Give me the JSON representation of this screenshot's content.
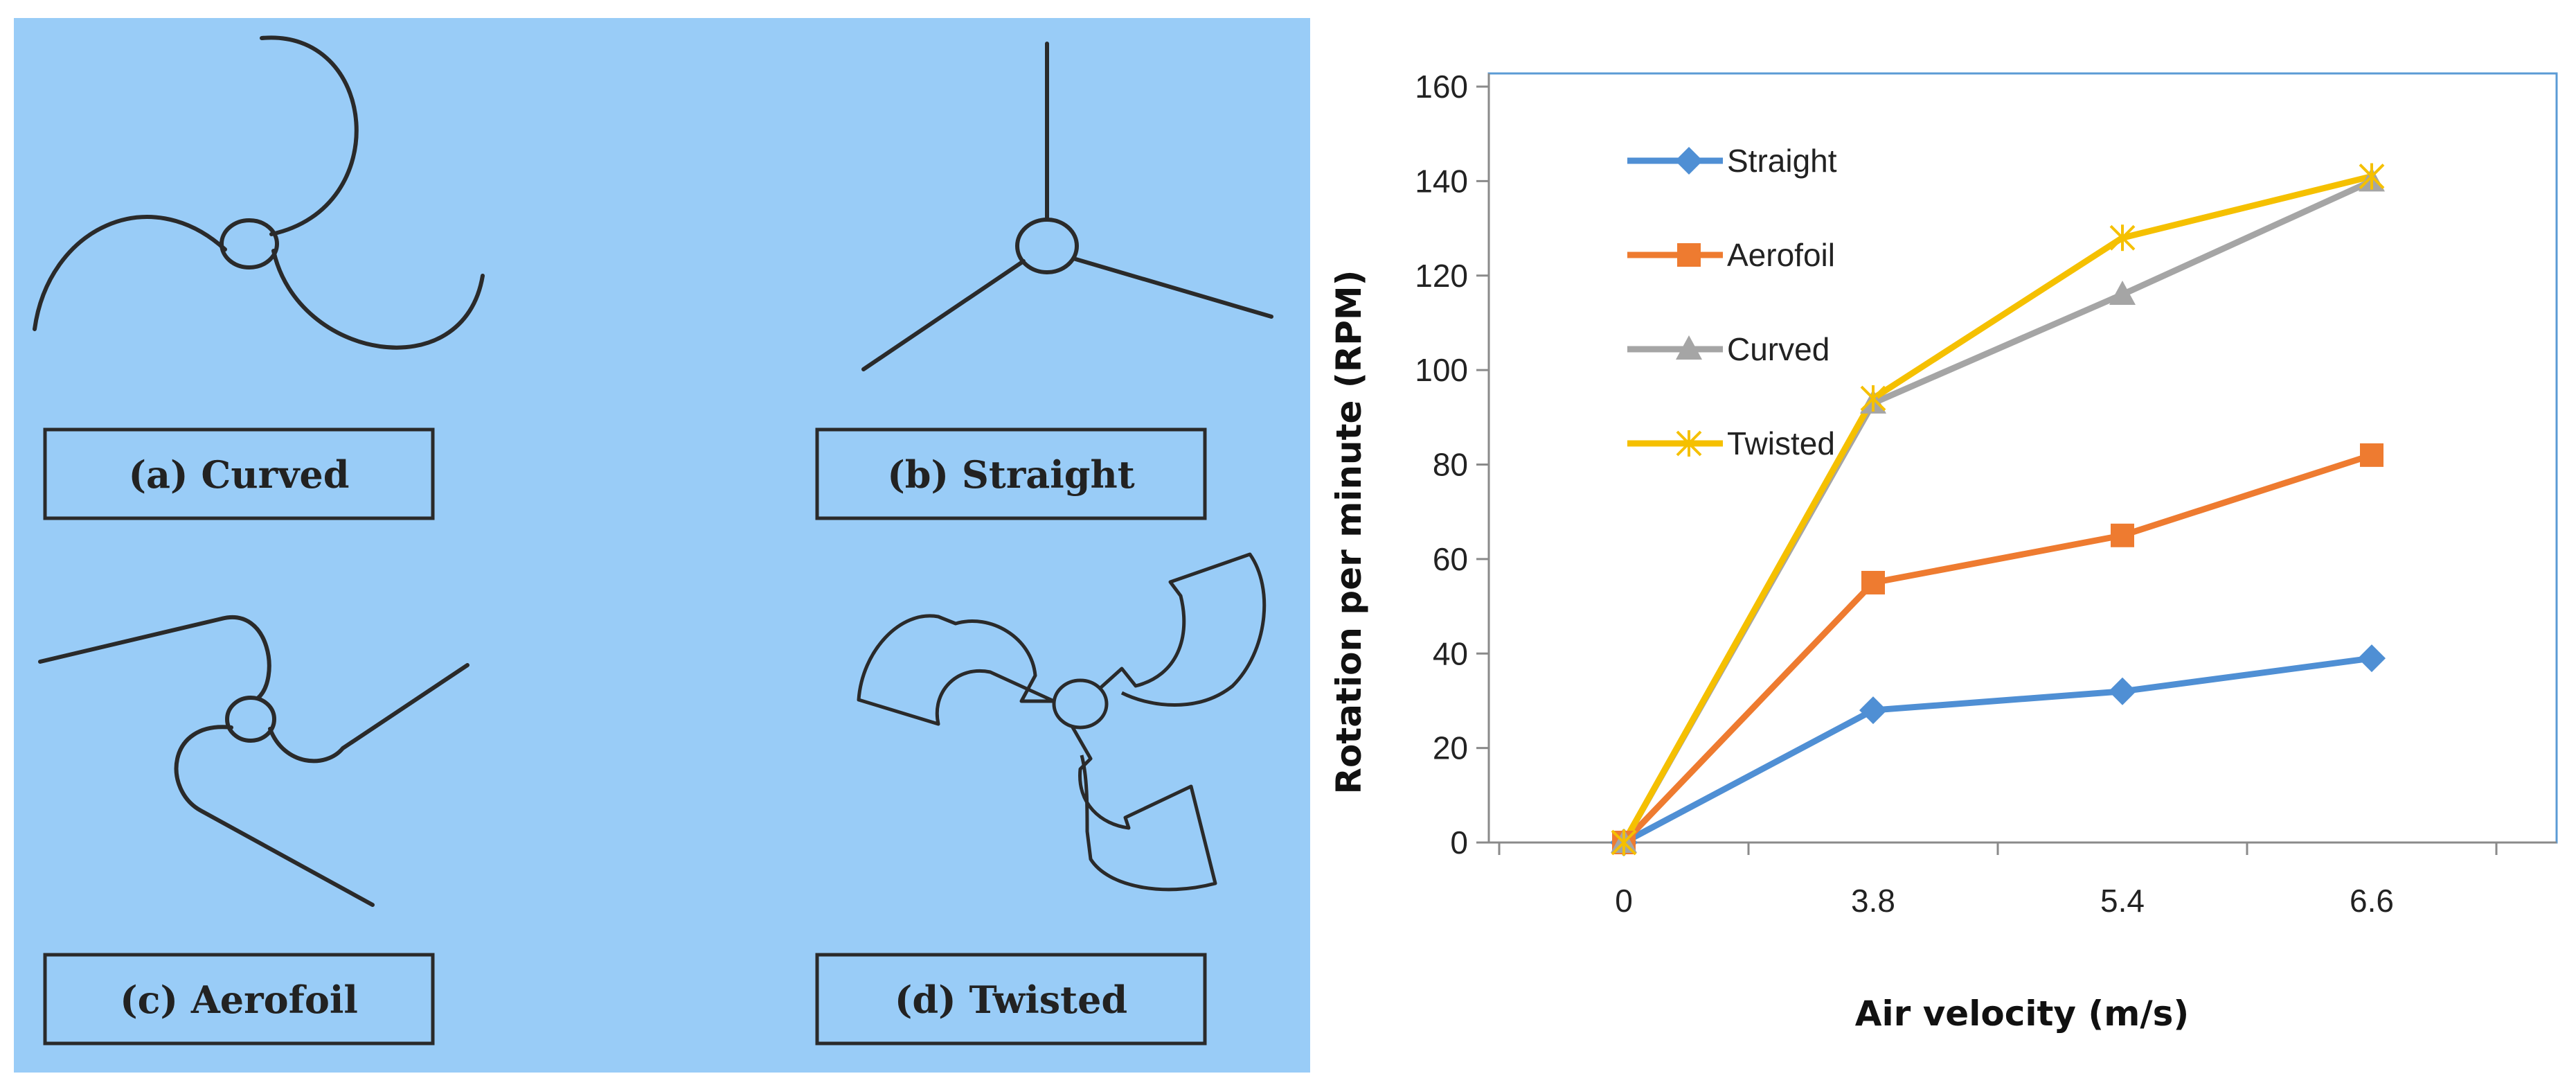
{
  "panel": {
    "background": "#99ccf7",
    "labels": [
      "(a) Curved",
      "(b) Straight",
      "(c) Aerofoil",
      "(d) Twisted"
    ]
  },
  "chart_data": {
    "type": "line",
    "categories": [
      "0",
      "3.8",
      "5.4",
      "6.6"
    ],
    "xlabel": "Air velocity (m/s)",
    "ylabel": "Rotation per minute (RPM)",
    "ylim": [
      0,
      160
    ],
    "yticks": [
      "0",
      "20",
      "40",
      "60",
      "80",
      "100",
      "120",
      "140",
      "160"
    ],
    "grid": false,
    "legend_position": "top-left inside",
    "series": [
      {
        "name": "Straight",
        "values": [
          0,
          28,
          32,
          39
        ],
        "color": "#4f8fd4",
        "marker": "diamond"
      },
      {
        "name": "Aerofoil",
        "values": [
          0,
          55,
          65,
          82
        ],
        "color": "#ee7b30",
        "marker": "square"
      },
      {
        "name": "Curved",
        "values": [
          0,
          93,
          116,
          140
        ],
        "color": "#a5a5a5",
        "marker": "triangle"
      },
      {
        "name": "Twisted",
        "values": [
          0,
          94,
          128,
          141
        ],
        "color": "#f5c000",
        "marker": "star"
      }
    ]
  }
}
